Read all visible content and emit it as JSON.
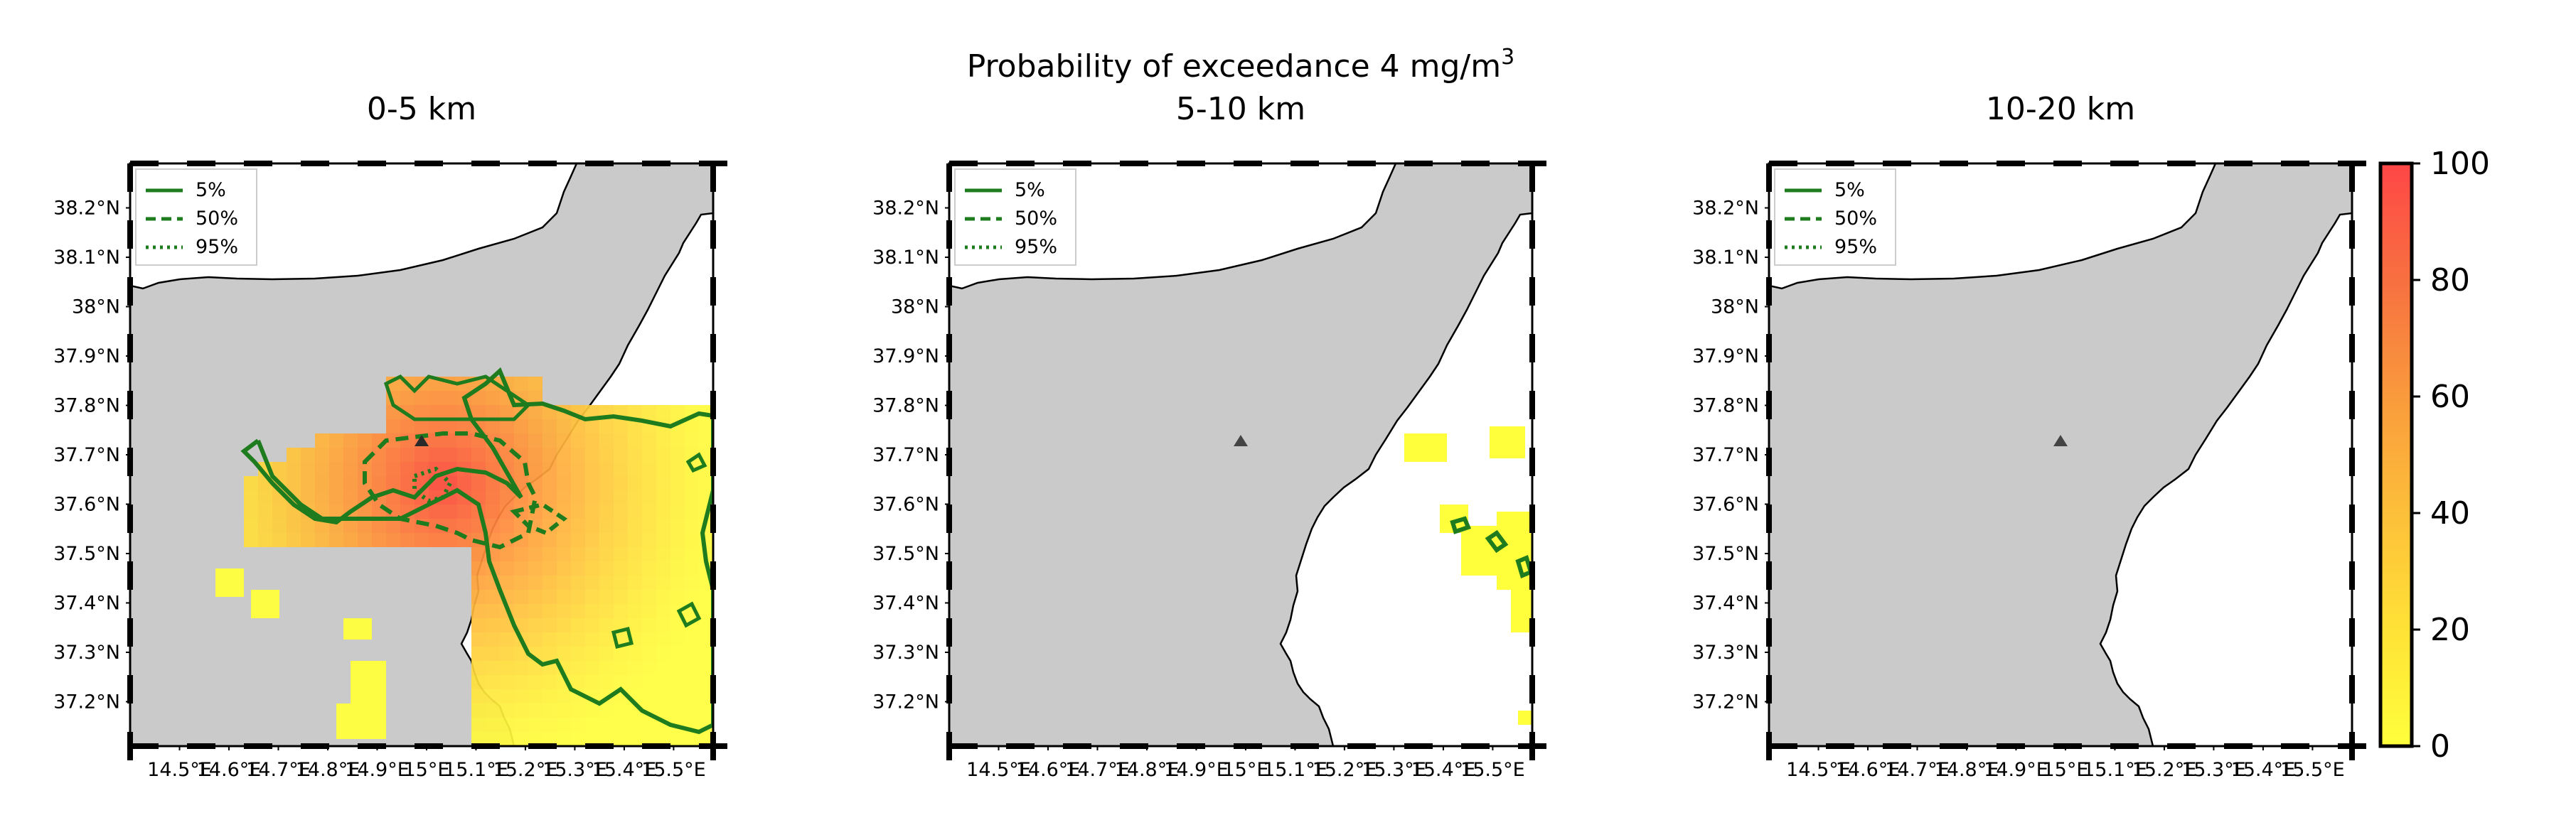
{
  "figure": {
    "suptitle": "Probability of exceedance 4 mg/m",
    "suptitle_sup": "3"
  },
  "panels": [
    {
      "title": "0-5 km",
      "has_contours": true
    },
    {
      "title": "5-10 km",
      "has_contours": true
    },
    {
      "title": "10-20 km",
      "has_contours": false
    }
  ],
  "axes": {
    "lat_labels": [
      "38.2°N",
      "38.1°N",
      "38°N",
      "37.9°N",
      "37.8°N",
      "37.7°N",
      "37.6°N",
      "37.5°N",
      "37.4°N",
      "37.3°N",
      "37.2°N"
    ],
    "lat_values": [
      38.2,
      38.1,
      38.0,
      37.9,
      37.8,
      37.7,
      37.6,
      37.5,
      37.4,
      37.3,
      37.2
    ],
    "lon_labels": [
      "14.5°E",
      "14.6°E",
      "14.7°E",
      "14.8°E",
      "14.9°E",
      "15°E",
      "15.1°E",
      "15.2°E",
      "15.3°E",
      "15.4°E",
      "15.5°E"
    ],
    "lon_values": [
      14.5,
      14.6,
      14.7,
      14.8,
      14.9,
      15.0,
      15.1,
      15.2,
      15.3,
      15.4,
      15.5
    ],
    "lon_range": [
      14.4,
      15.58
    ],
    "lat_range": [
      37.11,
      38.29
    ]
  },
  "legend": [
    {
      "label": "5%",
      "style": "solid"
    },
    {
      "label": "50%",
      "style": "dashed"
    },
    {
      "label": "95%",
      "style": "dotted"
    }
  ],
  "colorbar": {
    "ticks": [
      "0",
      "20",
      "40",
      "60",
      "80",
      "100"
    ],
    "tick_values": [
      0,
      20,
      40,
      60,
      80,
      100
    ],
    "min": 0,
    "max": 100,
    "color_low": "#ffff3c",
    "color_high": "#ff4646"
  },
  "colors": {
    "land": "#cacaca",
    "sea": "#ffffff",
    "contour": "#1e7b1e",
    "volcano_marker": "#444444"
  },
  "map_features": {
    "volcano_marker_lonlat": [
      15.0,
      37.73
    ]
  }
}
